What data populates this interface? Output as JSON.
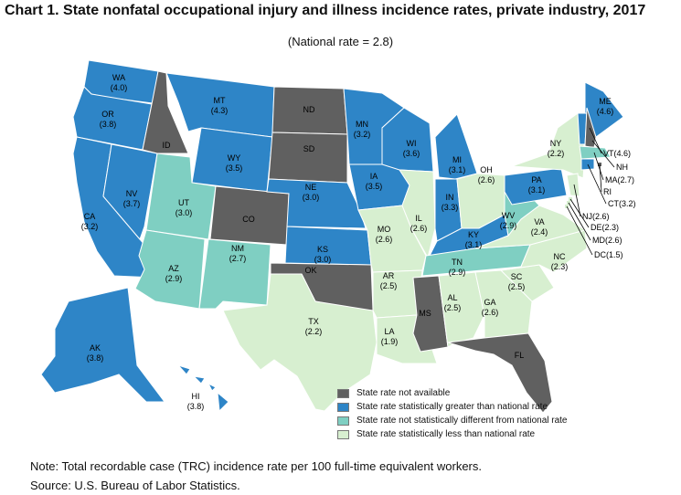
{
  "title": "Chart 1. State nonfatal occupational injury and illness incidence rates, private industry, 2017",
  "subtitle": "(National rate = 2.8)",
  "colors": {
    "na": "#606060",
    "greater": "#2e85c7",
    "not_different": "#7fcfc2",
    "less": "#d7efd0"
  },
  "legend": [
    {
      "key": "na",
      "label": "State rate not available"
    },
    {
      "key": "greater",
      "label": "State rate statistically greater than national rate"
    },
    {
      "key": "not_different",
      "label": "State rate not statistically different from national rate"
    },
    {
      "key": "less",
      "label": "State rate statistically less than national rate"
    }
  ],
  "states": {
    "WA": {
      "name": "WA",
      "value": "(4.0)",
      "cat": "greater"
    },
    "OR": {
      "name": "OR",
      "value": "(3.8)",
      "cat": "greater"
    },
    "CA": {
      "name": "CA",
      "value": "(3.2)",
      "cat": "greater"
    },
    "NV": {
      "name": "NV",
      "value": "(3.7)",
      "cat": "greater"
    },
    "ID": {
      "name": "ID",
      "value": "",
      "cat": "na"
    },
    "MT": {
      "name": "MT",
      "value": "(4.3)",
      "cat": "greater"
    },
    "WY": {
      "name": "WY",
      "value": "(3.5)",
      "cat": "greater"
    },
    "UT": {
      "name": "UT",
      "value": "(3.0)",
      "cat": "not_different"
    },
    "AZ": {
      "name": "AZ",
      "value": "(2.9)",
      "cat": "not_different"
    },
    "CO": {
      "name": "CO",
      "value": "",
      "cat": "na"
    },
    "NM": {
      "name": "NM",
      "value": "(2.7)",
      "cat": "not_different"
    },
    "ND": {
      "name": "ND",
      "value": "",
      "cat": "na"
    },
    "SD": {
      "name": "SD",
      "value": "",
      "cat": "na"
    },
    "NE": {
      "name": "NE",
      "value": "(3.0)",
      "cat": "greater"
    },
    "KS": {
      "name": "KS",
      "value": "(3.0)",
      "cat": "greater"
    },
    "OK": {
      "name": "OK",
      "value": "",
      "cat": "na"
    },
    "TX": {
      "name": "TX",
      "value": "(2.2)",
      "cat": "less"
    },
    "MN": {
      "name": "MN",
      "value": "(3.2)",
      "cat": "greater"
    },
    "IA": {
      "name": "IA",
      "value": "(3.5)",
      "cat": "greater"
    },
    "MO": {
      "name": "MO",
      "value": "(2.6)",
      "cat": "less"
    },
    "AR": {
      "name": "AR",
      "value": "(2.5)",
      "cat": "less"
    },
    "LA": {
      "name": "LA",
      "value": "(1.9)",
      "cat": "less"
    },
    "WI": {
      "name": "WI",
      "value": "(3.6)",
      "cat": "greater"
    },
    "IL": {
      "name": "IL",
      "value": "(2.6)",
      "cat": "less"
    },
    "MI": {
      "name": "MI",
      "value": "(3.1)",
      "cat": "greater"
    },
    "IN": {
      "name": "IN",
      "value": "(3.3)",
      "cat": "greater"
    },
    "OH": {
      "name": "OH",
      "value": "(2.6)",
      "cat": "less"
    },
    "KY": {
      "name": "KY",
      "value": "(3.1)",
      "cat": "greater"
    },
    "TN": {
      "name": "TN",
      "value": "(2.9)",
      "cat": "not_different"
    },
    "MS": {
      "name": "MS",
      "value": "",
      "cat": "na"
    },
    "AL": {
      "name": "AL",
      "value": "(2.5)",
      "cat": "less"
    },
    "GA": {
      "name": "GA",
      "value": "(2.6)",
      "cat": "less"
    },
    "FL": {
      "name": "FL",
      "value": "",
      "cat": "na"
    },
    "SC": {
      "name": "SC",
      "value": "(2.5)",
      "cat": "less"
    },
    "NC": {
      "name": "NC",
      "value": "(2.3)",
      "cat": "less"
    },
    "VA": {
      "name": "VA",
      "value": "(2.4)",
      "cat": "less"
    },
    "WV": {
      "name": "WV",
      "value": "(2.9)",
      "cat": "not_different"
    },
    "PA": {
      "name": "PA",
      "value": "(3.1)",
      "cat": "greater"
    },
    "NY": {
      "name": "NY",
      "value": "(2.2)",
      "cat": "less"
    },
    "ME": {
      "name": "ME",
      "value": "(4.6)",
      "cat": "greater"
    },
    "VT": {
      "name": "VT",
      "value": "",
      "cat": "greater"
    },
    "NH": {
      "name": "NH",
      "value": "",
      "cat": "na"
    },
    "MA": {
      "name": "MA",
      "value": "",
      "cat": "not_different"
    },
    "CT": {
      "name": "CT",
      "value": "",
      "cat": "greater"
    },
    "NJ": {
      "name": "NJ",
      "value": "",
      "cat": "less"
    },
    "AK": {
      "name": "AK",
      "value": "(3.8)",
      "cat": "greater"
    },
    "HI": {
      "name": "HI",
      "value": "(3.8)",
      "cat": "greater"
    }
  },
  "callouts": {
    "VT": "VT(4.6)",
    "NH": "NH",
    "MA": "MA(2.7)",
    "RI": "RI",
    "CT": "CT(3.2)",
    "NJ": "NJ(2.6)",
    "DE": "DE(2.3)",
    "MD": "MD(2.6)",
    "DC": "DC(1.5)"
  },
  "callout_colors": {
    "RI": "na",
    "DE": "less",
    "MD": "less",
    "DC": "less"
  },
  "note": "Note:  Total recordable case (TRC) incidence rate per 100 full-time equivalent workers.",
  "source": "Source:  U.S. Bureau of Labor Statistics."
}
